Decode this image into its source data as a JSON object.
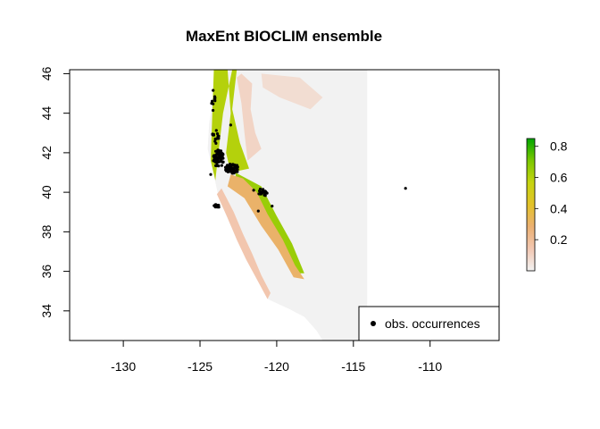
{
  "chart_data": {
    "type": "heatmap",
    "title": "MaxEnt BIOCLIM ensemble",
    "xlim": [
      -133.5,
      -105.5
    ],
    "ylim": [
      32.5,
      46.2
    ],
    "x_ticks": [
      -130,
      -125,
      -120,
      -115,
      -110
    ],
    "x_tick_labels": [
      "-130",
      "-125",
      "-120",
      "-115",
      "-110"
    ],
    "y_ticks": [
      34,
      36,
      38,
      40,
      42,
      44,
      46
    ],
    "y_tick_labels": [
      "34",
      "36",
      "38",
      "40",
      "42",
      "44",
      "46"
    ],
    "raster_extent": {
      "xmin": -124.5,
      "xmax": -114.1,
      "ymin": 32.5,
      "ymax": 46.2
    },
    "value_scale": {
      "min": 0.0,
      "max": 0.85,
      "ticks": [
        0.2,
        0.4,
        0.6,
        0.8
      ],
      "tick_labels": [
        "0.2",
        "0.4",
        "0.6",
        "0.8"
      ],
      "colors": [
        "#f2f2f2",
        "#f2c7b2",
        "#ebb072",
        "#e3c229",
        "#c6d410",
        "#7bc800",
        "#00a600"
      ]
    },
    "suitability_bands": [
      {
        "coords": [
          [
            -124.1,
            46.2
          ],
          [
            -123.2,
            46.2
          ],
          [
            -123.0,
            44.0
          ],
          [
            -123.3,
            42.0
          ],
          [
            -123.0,
            41.0
          ],
          [
            -121.8,
            41.2
          ],
          [
            -122.4,
            42.5
          ],
          [
            -122.9,
            44.2
          ],
          [
            -122.6,
            46.2
          ],
          [
            -122.9,
            46.2
          ],
          [
            -123.5,
            44.0
          ],
          [
            -123.8,
            42.0
          ],
          [
            -124.0,
            40.6
          ],
          [
            -124.3,
            41.6
          ],
          [
            -124.2,
            44.0
          ]
        ],
        "value": 0.6
      },
      {
        "coords": [
          [
            -122.7,
            41.0
          ],
          [
            -121.0,
            40.3
          ],
          [
            -120.0,
            38.8
          ],
          [
            -119.0,
            37.4
          ],
          [
            -118.2,
            35.9
          ],
          [
            -118.6,
            35.9
          ],
          [
            -119.6,
            37.2
          ],
          [
            -120.6,
            38.5
          ],
          [
            -121.6,
            39.8
          ],
          [
            -122.6,
            40.4
          ]
        ],
        "value": 0.65
      },
      {
        "coords": [
          [
            -123.0,
            40.9
          ],
          [
            -122.2,
            40.7
          ],
          [
            -121.3,
            40.0
          ],
          [
            -120.6,
            38.9
          ],
          [
            -119.6,
            37.6
          ],
          [
            -118.8,
            36.3
          ],
          [
            -118.2,
            35.6
          ],
          [
            -118.9,
            35.7
          ],
          [
            -119.9,
            37.1
          ],
          [
            -121.0,
            38.3
          ],
          [
            -122.1,
            39.7
          ],
          [
            -123.2,
            40.3
          ]
        ],
        "value": 0.3
      },
      {
        "coords": [
          [
            -123.6,
            40.2
          ],
          [
            -122.8,
            39.0
          ],
          [
            -122.2,
            37.9
          ],
          [
            -121.6,
            36.9
          ],
          [
            -121.0,
            35.8
          ],
          [
            -120.4,
            34.9
          ],
          [
            -120.6,
            34.6
          ],
          [
            -121.3,
            35.6
          ],
          [
            -122.0,
            36.6
          ],
          [
            -122.6,
            37.6
          ],
          [
            -123.2,
            38.7
          ],
          [
            -123.9,
            39.9
          ]
        ],
        "value": 0.15
      },
      {
        "coords": [
          [
            -122.3,
            46.0
          ],
          [
            -121.6,
            45.5
          ],
          [
            -121.7,
            44.2
          ],
          [
            -121.4,
            43.0
          ],
          [
            -121.0,
            42.2
          ],
          [
            -121.9,
            41.6
          ],
          [
            -122.1,
            43.0
          ],
          [
            -122.3,
            44.5
          ],
          [
            -122.6,
            45.8
          ]
        ],
        "value": 0.1
      },
      {
        "coords": [
          [
            -121.0,
            46.0
          ],
          [
            -118.5,
            45.8
          ],
          [
            -117.0,
            44.8
          ],
          [
            -117.8,
            44.2
          ],
          [
            -119.8,
            44.8
          ],
          [
            -120.9,
            45.3
          ]
        ],
        "value": 0.07
      }
    ],
    "occurrence_clusters": [
      {
        "x": -123.8,
        "y": 41.7,
        "rx": 0.35,
        "ry": 0.45,
        "n": 80
      },
      {
        "x": -122.9,
        "y": 41.2,
        "rx": 0.45,
        "ry": 0.25,
        "n": 70
      },
      {
        "x": -120.9,
        "y": 40.0,
        "rx": 0.3,
        "ry": 0.2,
        "n": 25
      },
      {
        "x": -124.1,
        "y": 44.6,
        "rx": 0.15,
        "ry": 0.6,
        "n": 10
      },
      {
        "x": -123.9,
        "y": 39.3,
        "rx": 0.2,
        "ry": 0.1,
        "n": 12
      },
      {
        "x": -124.0,
        "y": 42.8,
        "rx": 0.25,
        "ry": 0.4,
        "n": 15
      }
    ],
    "occurrence_points": [
      [
        -111.6,
        40.2
      ],
      [
        -121.2,
        39.05
      ],
      [
        -120.3,
        39.3
      ],
      [
        -123.0,
        43.4
      ],
      [
        -124.3,
        40.9
      ],
      [
        -121.5,
        40.1
      ]
    ],
    "legend": {
      "label": "obs. occurrences",
      "position": "bottom-right"
    }
  }
}
